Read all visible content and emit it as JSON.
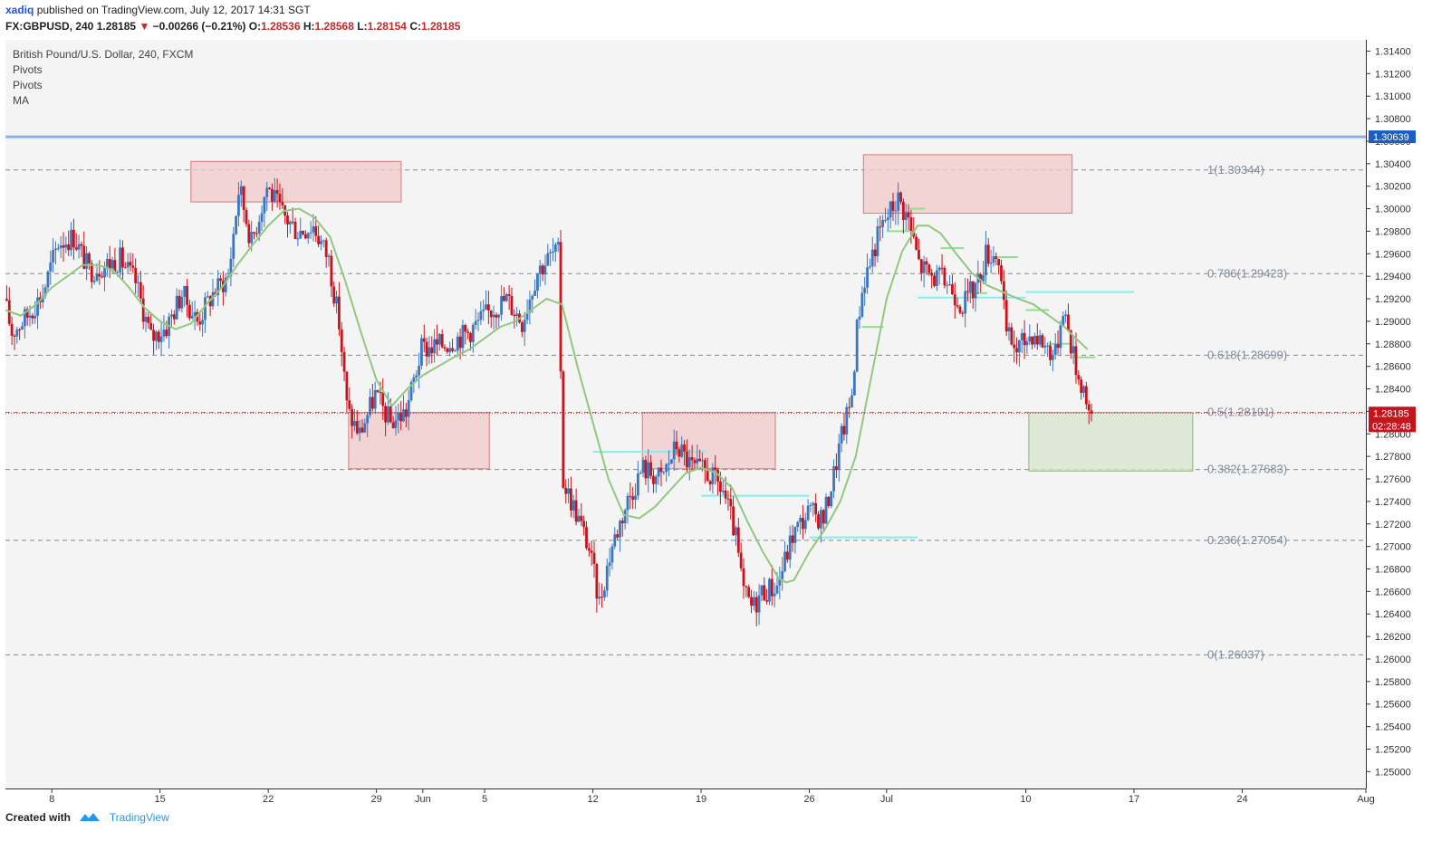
{
  "header": {
    "user": "xadiq",
    "published": "published on TradingView.com, July 12, 2017 14:31 SGT",
    "symbol": "FX:GBPUSD, 240",
    "last": "1.28185",
    "arrow": "▼",
    "change": "−0.00266 (−0.21%)",
    "open_label": "O:",
    "open": "1.28536",
    "high_label": "H:",
    "high": "1.28568",
    "low_label": "L:",
    "low": "1.28154",
    "close_label": "C:",
    "close": "1.28185"
  },
  "indicators": [
    "British Pound/U.S. Dollar, 240, FXCM",
    "Pivots",
    "Pivots",
    "MA"
  ],
  "footer": {
    "created": "Created with",
    "brand": "TradingView"
  },
  "colors": {
    "up": "#3a77c0",
    "down": "#c6141d",
    "ma": "#93c77e",
    "fib": "#888888",
    "fib_label": "#7f8c9c",
    "resistance": "#8fb0e8",
    "zone_red": "#f2c9c9",
    "zone_green": "#d6e6cc",
    "pivot_cyan": "#7ff0f0",
    "pivot_green": "#8fe08f",
    "price_tag": "#c6141d",
    "level_tag": "#1a5ec4"
  },
  "chart_data": {
    "type": "candlestick",
    "symbol": "GBPUSD",
    "timeframe": "240",
    "ylim": [
      1.2485,
      1.315
    ],
    "y_ticks": [
      "1.31400",
      "1.31200",
      "1.31000",
      "1.30800",
      "1.30600",
      "1.30400",
      "1.30200",
      "1.30000",
      "1.29800",
      "1.29600",
      "1.29400",
      "1.29200",
      "1.29000",
      "1.28800",
      "1.28600",
      "1.28400",
      "1.28200",
      "1.28000",
      "1.27800",
      "1.27600",
      "1.27400",
      "1.27200",
      "1.27000",
      "1.26800",
      "1.26600",
      "1.26400",
      "1.26200",
      "1.26000",
      "1.25800",
      "1.25600",
      "1.25400",
      "1.25200",
      "1.25000"
    ],
    "x_ticks": [
      {
        "label": "8",
        "day": 8
      },
      {
        "label": "15",
        "day": 15
      },
      {
        "label": "22",
        "day": 22
      },
      {
        "label": "29",
        "day": 29
      },
      {
        "label": "Jun",
        "day": 32
      },
      {
        "label": "5",
        "day": 36
      },
      {
        "label": "12",
        "day": 43
      },
      {
        "label": "19",
        "day": 50
      },
      {
        "label": "26",
        "day": 57
      },
      {
        "label": "Jul",
        "day": 62
      },
      {
        "label": "10",
        "day": 71
      },
      {
        "label": "17",
        "day": 78
      },
      {
        "label": "24",
        "day": 85
      },
      {
        "label": "Aug",
        "day": 93
      }
    ],
    "x_domain": [
      5,
      93
    ],
    "resistance_line": {
      "value": 1.30639,
      "label": "1.30639"
    },
    "last_price": {
      "value": 1.28185,
      "label": "1.28185",
      "countdown": "02:28:48"
    },
    "fibonacci": [
      {
        "ratio": "1",
        "value": 1.30344,
        "label": "1(1.30344)"
      },
      {
        "ratio": "0.786",
        "value": 1.29423,
        "label": "0.786(1.29423)"
      },
      {
        "ratio": "0.618",
        "value": 1.28699,
        "label": "0.618(1.28699)"
      },
      {
        "ratio": "0.5",
        "value": 1.28191,
        "label": "0.5(1.28191)"
      },
      {
        "ratio": "0.382",
        "value": 1.27683,
        "label": "0.382(1.27683)"
      },
      {
        "ratio": "0.236",
        "value": 1.27054,
        "label": "0.236(1.27054)"
      },
      {
        "ratio": "0",
        "value": 1.26037,
        "label": "0(1.26037)"
      }
    ],
    "zones": [
      {
        "kind": "supply",
        "day_from": 17,
        "day_to": 30.6,
        "top": 1.3042,
        "bottom": 1.3006
      },
      {
        "kind": "demand",
        "day_from": 27.2,
        "day_to": 36.3,
        "top": 1.2819,
        "bottom": 1.2769
      },
      {
        "kind": "supply",
        "day_from": 46.2,
        "day_to": 54.8,
        "top": 1.2819,
        "bottom": 1.2769
      },
      {
        "kind": "supply",
        "day_from": 60.5,
        "day_to": 74.0,
        "top": 1.3048,
        "bottom": 1.2996
      },
      {
        "kind": "target",
        "day_from": 71.2,
        "day_to": 81.8,
        "top": 1.2819,
        "bottom": 1.2767
      }
    ],
    "pivots": [
      {
        "color": "cyan",
        "day_from": 43.0,
        "day_to": 50.3,
        "value": 1.2784
      },
      {
        "color": "cyan",
        "day_from": 50.0,
        "day_to": 57.0,
        "value": 1.2745
      },
      {
        "color": "cyan",
        "day_from": 57.0,
        "day_to": 64.0,
        "value": 1.2708
      },
      {
        "color": "cyan",
        "day_from": 64.0,
        "day_to": 71.0,
        "value": 1.2921
      },
      {
        "color": "cyan",
        "day_from": 71.0,
        "day_to": 78.0,
        "value": 1.2926
      },
      {
        "color": "green",
        "day_from": 60.4,
        "day_to": 61.8,
        "value": 1.2895
      },
      {
        "color": "green",
        "day_from": 62.0,
        "day_to": 63.5,
        "value": 1.298
      },
      {
        "color": "green",
        "day_from": 63.5,
        "day_to": 64.5,
        "value": 1.3
      },
      {
        "color": "green",
        "day_from": 65.5,
        "day_to": 67.0,
        "value": 1.2965
      },
      {
        "color": "green",
        "day_from": 67.2,
        "day_to": 68.5,
        "value": 1.2925
      },
      {
        "color": "green",
        "day_from": 69.2,
        "day_to": 70.5,
        "value": 1.2957
      },
      {
        "color": "green",
        "day_from": 71.0,
        "day_to": 72.5,
        "value": 1.291
      },
      {
        "color": "green",
        "day_from": 72.5,
        "day_to": 74.0,
        "value": 1.288
      },
      {
        "color": "green",
        "day_from": 74.0,
        "day_to": 75.5,
        "value": 1.2868
      }
    ],
    "ohlc_keypoints": [
      [
        5.0,
        1.292
      ],
      [
        5.5,
        1.289
      ],
      [
        6.5,
        1.2905
      ],
      [
        7.5,
        1.2925
      ],
      [
        8.5,
        1.297
      ],
      [
        9.5,
        1.2975
      ],
      [
        10.5,
        1.2945
      ],
      [
        11.5,
        1.295
      ],
      [
        12.5,
        1.2955
      ],
      [
        13.5,
        1.2935
      ],
      [
        14.5,
        1.2885
      ],
      [
        15.5,
        1.2895
      ],
      [
        16.5,
        1.2925
      ],
      [
        17.5,
        1.29
      ],
      [
        18.5,
        1.2925
      ],
      [
        19.5,
        1.294
      ],
      [
        20.2,
        1.302
      ],
      [
        21.0,
        1.297
      ],
      [
        22.0,
        1.302
      ],
      [
        23.0,
        1.2995
      ],
      [
        24.0,
        1.298
      ],
      [
        25.0,
        1.2985
      ],
      [
        26.0,
        1.2955
      ],
      [
        26.7,
        1.2895
      ],
      [
        27.2,
        1.282
      ],
      [
        28.0,
        1.28
      ],
      [
        29.0,
        1.2835
      ],
      [
        30.0,
        1.281
      ],
      [
        31.0,
        1.282
      ],
      [
        32.0,
        1.2875
      ],
      [
        33.5,
        1.288
      ],
      [
        35.0,
        1.289
      ],
      [
        36.5,
        1.291
      ],
      [
        37.5,
        1.292
      ],
      [
        38.5,
        1.29
      ],
      [
        39.5,
        1.2945
      ],
      [
        40.5,
        1.296
      ],
      [
        40.9,
        1.296
      ],
      [
        41.1,
        1.276
      ],
      [
        42.0,
        1.273
      ],
      [
        42.8,
        1.27
      ],
      [
        43.5,
        1.265
      ],
      [
        44.3,
        1.27
      ],
      [
        45.3,
        1.274
      ],
      [
        46.3,
        1.277
      ],
      [
        47.5,
        1.276
      ],
      [
        48.5,
        1.279
      ],
      [
        49.5,
        1.277
      ],
      [
        50.5,
        1.2765
      ],
      [
        51.5,
        1.275
      ],
      [
        52.3,
        1.271
      ],
      [
        52.8,
        1.266
      ],
      [
        53.4,
        1.2645
      ],
      [
        54.0,
        1.266
      ],
      [
        55.0,
        1.2665
      ],
      [
        56.0,
        1.271
      ],
      [
        57.0,
        1.273
      ],
      [
        58.0,
        1.2725
      ],
      [
        58.6,
        1.276
      ],
      [
        59.2,
        1.28
      ],
      [
        59.8,
        1.283
      ],
      [
        60.2,
        1.29
      ],
      [
        60.6,
        1.2935
      ],
      [
        61.5,
        1.2975
      ],
      [
        62.0,
        1.299
      ],
      [
        62.8,
        1.301
      ],
      [
        63.5,
        1.299
      ],
      [
        64.2,
        1.295
      ],
      [
        65.0,
        1.294
      ],
      [
        66.0,
        1.2935
      ],
      [
        67.0,
        1.2915
      ],
      [
        68.0,
        1.2935
      ],
      [
        68.5,
        1.296
      ],
      [
        69.3,
        1.296
      ],
      [
        69.8,
        1.289
      ],
      [
        70.5,
        1.2875
      ],
      [
        71.5,
        1.289
      ],
      [
        72.3,
        1.288
      ],
      [
        73.0,
        1.287
      ],
      [
        73.5,
        1.2915
      ],
      [
        74.0,
        1.288
      ],
      [
        74.5,
        1.285
      ],
      [
        74.9,
        1.284
      ],
      [
        75.2,
        1.2818
      ]
    ],
    "ma_keypoints": [
      [
        5.0,
        1.291
      ],
      [
        6.0,
        1.2905
      ],
      [
        7.0,
        1.2915
      ],
      [
        8.0,
        1.293
      ],
      [
        9.0,
        1.294
      ],
      [
        10.0,
        1.295
      ],
      [
        11.0,
        1.295
      ],
      [
        12.0,
        1.2945
      ],
      [
        13.0,
        1.293
      ],
      [
        14.0,
        1.2912
      ],
      [
        15.0,
        1.29
      ],
      [
        16.0,
        1.2893
      ],
      [
        17.0,
        1.2898
      ],
      [
        18.0,
        1.2915
      ],
      [
        19.0,
        1.293
      ],
      [
        20.0,
        1.295
      ],
      [
        21.0,
        1.2968
      ],
      [
        22.0,
        1.2985
      ],
      [
        23.0,
        1.2998
      ],
      [
        24.0,
        1.3
      ],
      [
        25.0,
        1.2992
      ],
      [
        26.0,
        1.2975
      ],
      [
        27.0,
        1.2935
      ],
      [
        28.0,
        1.289
      ],
      [
        29.0,
        1.2848
      ],
      [
        30.0,
        1.2825
      ],
      [
        31.0,
        1.284
      ],
      [
        32.0,
        1.2852
      ],
      [
        33.0,
        1.286
      ],
      [
        34.0,
        1.2868
      ],
      [
        35.0,
        1.2875
      ],
      [
        36.0,
        1.2885
      ],
      [
        37.0,
        1.2895
      ],
      [
        38.0,
        1.29
      ],
      [
        39.0,
        1.291
      ],
      [
        40.0,
        1.292
      ],
      [
        41.0,
        1.2915
      ],
      [
        42.0,
        1.286
      ],
      [
        43.0,
        1.281
      ],
      [
        44.0,
        1.276
      ],
      [
        45.0,
        1.2728
      ],
      [
        46.0,
        1.2725
      ],
      [
        47.0,
        1.2735
      ],
      [
        48.0,
        1.275
      ],
      [
        49.0,
        1.2765
      ],
      [
        50.0,
        1.277
      ],
      [
        51.0,
        1.2765
      ],
      [
        52.0,
        1.2752
      ],
      [
        53.0,
        1.2722
      ],
      [
        54.0,
        1.2695
      ],
      [
        55.0,
        1.2672
      ],
      [
        55.5,
        1.2668
      ],
      [
        56.0,
        1.267
      ],
      [
        57.0,
        1.2695
      ],
      [
        58.0,
        1.2715
      ],
      [
        59.0,
        1.274
      ],
      [
        60.0,
        1.278
      ],
      [
        61.0,
        1.285
      ],
      [
        62.0,
        1.292
      ],
      [
        63.0,
        1.2962
      ],
      [
        64.0,
        1.2985
      ],
      [
        64.7,
        1.2985
      ],
      [
        65.5,
        1.2978
      ],
      [
        66.5,
        1.296
      ],
      [
        67.5,
        1.2943
      ],
      [
        68.5,
        1.2932
      ],
      [
        69.5,
        1.2926
      ],
      [
        70.5,
        1.292
      ],
      [
        71.5,
        1.2915
      ],
      [
        72.5,
        1.2905
      ],
      [
        73.5,
        1.2895
      ],
      [
        74.0,
        1.2888
      ],
      [
        75.0,
        1.2875
      ]
    ]
  }
}
